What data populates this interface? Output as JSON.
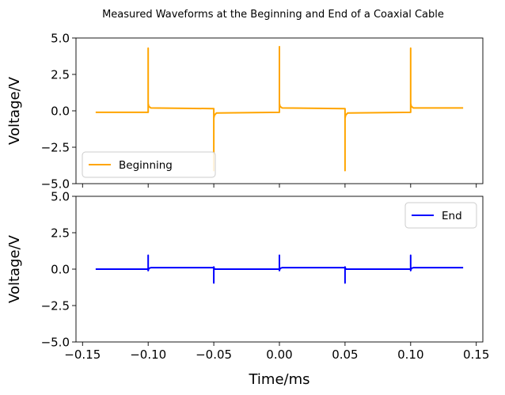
{
  "figure": {
    "title": "Measured Waveforms at the Beginning and End of a Coaxial Cable"
  },
  "chart_data": [
    {
      "type": "line",
      "panel": "top",
      "title": "",
      "xlabel": "",
      "ylabel": "Voltage/V",
      "xlim": [
        -0.155,
        0.155
      ],
      "ylim": [
        -5.0,
        5.0
      ],
      "xticks": [
        -0.15,
        -0.1,
        -0.05,
        0.0,
        0.05,
        0.1,
        0.15
      ],
      "xtick_labels_visible": false,
      "yticks": [
        -5.0,
        -2.5,
        0.0,
        2.5,
        5.0
      ],
      "ytick_labels": [
        "−5.0",
        "−2.5",
        "0.0",
        "2.5",
        "5.0"
      ],
      "grid": false,
      "legend_position": "lower-left",
      "series": [
        {
          "name": "Beginning",
          "color": "#FFA500",
          "x": [
            -0.14,
            -0.1,
            -0.1,
            -0.1,
            -0.0995,
            -0.098,
            -0.05,
            -0.05,
            -0.05,
            -0.0495,
            -0.048,
            0.0,
            0.0,
            0.0,
            0.0005,
            0.002,
            0.05,
            0.05,
            0.05,
            0.0505,
            0.052,
            0.1,
            0.1,
            0.1,
            0.1005,
            0.102,
            0.14
          ],
          "y": [
            -0.1,
            -0.1,
            4.3,
            0.5,
            0.3,
            0.2,
            0.15,
            -4.1,
            -0.5,
            -0.3,
            -0.15,
            -0.1,
            4.4,
            0.5,
            0.3,
            0.2,
            0.15,
            -4.1,
            -0.5,
            -0.3,
            -0.15,
            -0.1,
            4.3,
            0.5,
            0.3,
            0.2,
            0.2
          ]
        }
      ]
    },
    {
      "type": "line",
      "panel": "bottom",
      "title": "",
      "xlabel": "Time/ms",
      "ylabel": "Voltage/V",
      "xlim": [
        -0.155,
        0.155
      ],
      "ylim": [
        -5.0,
        5.0
      ],
      "xticks": [
        -0.15,
        -0.1,
        -0.05,
        0.0,
        0.05,
        0.1,
        0.15
      ],
      "xtick_labels": [
        "−0.15",
        "−0.10",
        "−0.05",
        "0.00",
        "0.05",
        "0.10",
        "0.15"
      ],
      "yticks": [
        -5.0,
        -2.5,
        0.0,
        2.5,
        5.0
      ],
      "ytick_labels": [
        "−5.0",
        "−2.5",
        "0.0",
        "2.5",
        "5.0"
      ],
      "grid": false,
      "legend_position": "upper-right",
      "series": [
        {
          "name": "End",
          "color": "#0000FF",
          "x": [
            -0.14,
            -0.1,
            -0.1,
            -0.1,
            -0.0995,
            -0.098,
            -0.05,
            -0.05,
            -0.05,
            -0.0495,
            -0.048,
            0.0,
            0.0,
            0.0,
            0.0005,
            0.002,
            0.05,
            0.05,
            0.05,
            0.0505,
            0.052,
            0.1,
            0.1,
            0.1,
            0.1005,
            0.102,
            0.14
          ],
          "y": [
            0.0,
            0.0,
            0.95,
            -0.1,
            0.05,
            0.1,
            0.1,
            -0.95,
            0.15,
            0.0,
            0.0,
            0.0,
            0.95,
            -0.1,
            0.05,
            0.1,
            0.1,
            -0.95,
            0.15,
            0.0,
            0.0,
            0.0,
            0.95,
            -0.1,
            0.05,
            0.1,
            0.1
          ]
        }
      ]
    }
  ]
}
